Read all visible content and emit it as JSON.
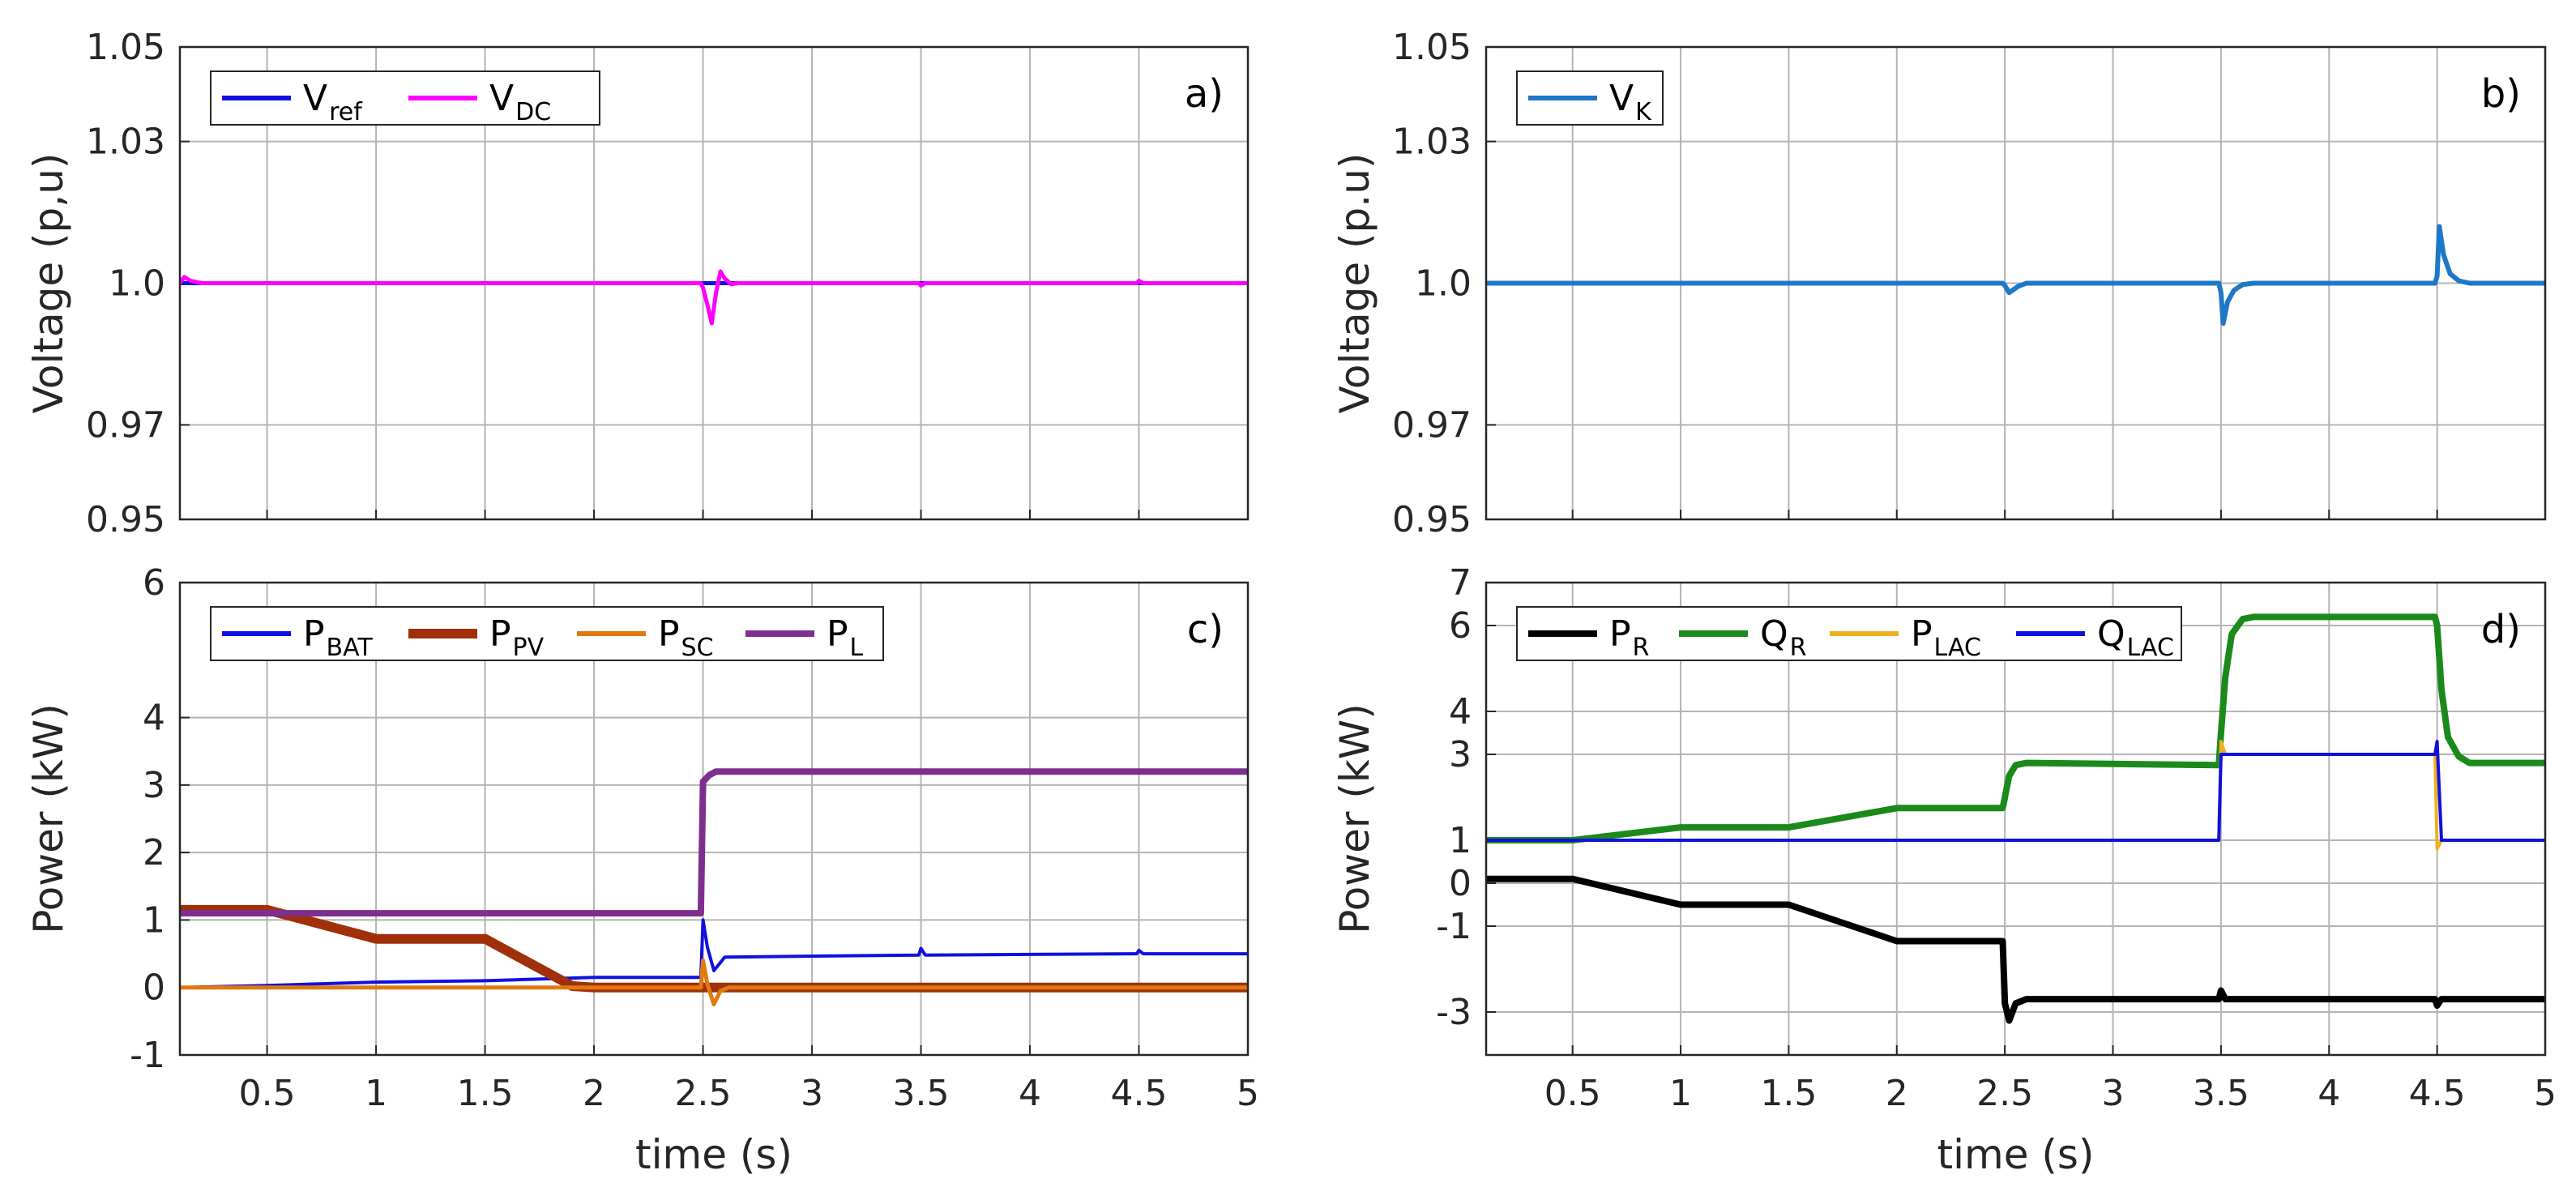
{
  "chart_data": [
    {
      "id": "a",
      "type": "line",
      "panel_label": "a)",
      "xlabel": "",
      "ylabel": "Voltage (p,u)",
      "xlim": [
        0.1,
        5
      ],
      "ylim": [
        0.95,
        1.05
      ],
      "xticks": [
        0.5,
        1,
        1.5,
        2,
        2.5,
        3,
        3.5,
        4,
        4.5,
        5
      ],
      "xtick_labels": [],
      "yticks": [
        0.95,
        0.97,
        1.0,
        1.03,
        1.05
      ],
      "ytick_labels": [
        "0.95",
        "0.97",
        "1.0",
        "1.03",
        "1.05"
      ],
      "grid": true,
      "legend": {
        "position": "top-left",
        "orientation": "horizontal"
      },
      "series": [
        {
          "name": "V",
          "sub": "ref",
          "color": "#1010e0",
          "width": 5,
          "x": [
            0.1,
            5
          ],
          "y": [
            1.0,
            1.0
          ]
        },
        {
          "name": "V",
          "sub": "DC",
          "color": "#ff00ff",
          "width": 5,
          "x": [
            0.1,
            0.12,
            0.15,
            0.2,
            2.49,
            2.5,
            2.52,
            2.54,
            2.56,
            2.58,
            2.6,
            2.63,
            2.66,
            3.49,
            3.5,
            3.52,
            4.49,
            4.5,
            4.52,
            5
          ],
          "y": [
            1.0,
            1.0013,
            1.0005,
            1.0,
            1.0,
            0.999,
            0.9955,
            0.9915,
            0.998,
            1.0025,
            1.001,
            0.9998,
            1.0,
            1.0,
            0.9995,
            1.0,
            1.0,
            1.0005,
            1.0,
            1.0
          ]
        }
      ]
    },
    {
      "id": "b",
      "type": "line",
      "panel_label": "b)",
      "xlabel": "",
      "ylabel": "Voltage (p.u)",
      "xlim": [
        0.1,
        5
      ],
      "ylim": [
        0.95,
        1.05
      ],
      "xticks": [
        0.5,
        1,
        1.5,
        2,
        2.5,
        3,
        3.5,
        4,
        4.5,
        5
      ],
      "xtick_labels": [],
      "yticks": [
        0.95,
        0.97,
        1.0,
        1.03,
        1.05
      ],
      "ytick_labels": [
        "0.95",
        "0.97",
        "1.0",
        "1.03",
        "1.05"
      ],
      "grid": true,
      "legend": {
        "position": "top-left",
        "orientation": "horizontal"
      },
      "series": [
        {
          "name": "V",
          "sub": "K",
          "color": "#1e78c8",
          "width": 6,
          "x": [
            0.1,
            2.49,
            2.5,
            2.52,
            2.56,
            2.6,
            3.49,
            3.5,
            3.51,
            3.53,
            3.56,
            3.6,
            3.65,
            4.49,
            4.5,
            4.51,
            4.53,
            4.56,
            4.6,
            4.65,
            5
          ],
          "y": [
            1.0,
            1.0,
            0.9995,
            0.998,
            0.9993,
            1.0,
            1.0,
            0.998,
            0.9915,
            0.996,
            0.9985,
            0.9997,
            1.0,
            1.0,
            1.0015,
            1.012,
            1.006,
            1.002,
            1.0005,
            1.0,
            1.0
          ]
        }
      ]
    },
    {
      "id": "c",
      "type": "line",
      "panel_label": "c)",
      "xlabel": "time (s)",
      "ylabel": "Power (kW)",
      "xlim": [
        0.1,
        5
      ],
      "ylim": [
        -1,
        6
      ],
      "xticks": [
        0.5,
        1,
        1.5,
        2,
        2.5,
        3,
        3.5,
        4,
        4.5,
        5
      ],
      "xtick_labels": [
        "0.5",
        "1",
        "1.5",
        "2",
        "2.5",
        "3",
        "3.5",
        "4",
        "4.5",
        "5"
      ],
      "yticks": [
        -1,
        0,
        1,
        2,
        3,
        4,
        6
      ],
      "ytick_labels": [
        "-1",
        "0",
        "1",
        "2",
        "3",
        "4",
        "6"
      ],
      "grid": true,
      "legend": {
        "position": "top-left",
        "orientation": "horizontal"
      },
      "series": [
        {
          "name": "P",
          "sub": "BAT",
          "color": "#1010e0",
          "width": 4,
          "x": [
            0.1,
            0.5,
            1.0,
            1.5,
            2.0,
            2.49,
            2.5,
            2.52,
            2.55,
            2.6,
            3.49,
            3.5,
            3.52,
            4.49,
            4.5,
            4.52,
            5
          ],
          "y": [
            0.0,
            0.03,
            0.08,
            0.1,
            0.15,
            0.15,
            1.0,
            0.6,
            0.25,
            0.45,
            0.48,
            0.58,
            0.48,
            0.5,
            0.55,
            0.5,
            0.5
          ]
        },
        {
          "name": "P",
          "sub": "PV",
          "color": "#a0300a",
          "width": 12,
          "x": [
            0.1,
            0.5,
            1.0,
            1.5,
            1.9,
            2.0,
            5
          ],
          "y": [
            1.15,
            1.15,
            0.72,
            0.72,
            0.02,
            0.0,
            0.0
          ]
        },
        {
          "name": "P",
          "sub": "SC",
          "color": "#e07a10",
          "width": 5,
          "x": [
            0.1,
            2.49,
            2.5,
            2.52,
            2.55,
            2.58,
            2.62,
            5
          ],
          "y": [
            0.0,
            0.0,
            0.4,
            0.05,
            -0.25,
            -0.05,
            0.0,
            0.0
          ]
        },
        {
          "name": "P",
          "sub": "L",
          "color": "#7e2f8e",
          "width": 8,
          "x": [
            0.1,
            2.49,
            2.5,
            2.53,
            2.56,
            5
          ],
          "y": [
            1.1,
            1.1,
            3.05,
            3.15,
            3.2,
            3.2
          ]
        }
      ]
    },
    {
      "id": "d",
      "type": "line",
      "panel_label": "d)",
      "xlabel": "time (s)",
      "ylabel": "Power (kW)",
      "xlim": [
        0.1,
        5
      ],
      "ylim": [
        -4,
        7
      ],
      "xticks": [
        0.5,
        1,
        1.5,
        2,
        2.5,
        3,
        3.5,
        4,
        4.5,
        5
      ],
      "xtick_labels": [
        "0.5",
        "1",
        "1.5",
        "2",
        "2.5",
        "3",
        "3.5",
        "4",
        "4.5",
        "5"
      ],
      "yticks": [
        -3,
        -1,
        0,
        1,
        3,
        4,
        6,
        7
      ],
      "ytick_labels": [
        "-3",
        "-1",
        "0",
        "1",
        "3",
        "4",
        "6",
        "7"
      ],
      "grid": true,
      "legend": {
        "position": "top-left",
        "orientation": "horizontal"
      },
      "series": [
        {
          "name": "P",
          "sub": "R",
          "color": "#000000",
          "width": 8,
          "x": [
            0.1,
            0.5,
            1.0,
            1.5,
            2.0,
            2.49,
            2.5,
            2.52,
            2.55,
            2.6,
            3.49,
            3.5,
            3.52,
            4.49,
            4.5,
            4.52,
            5
          ],
          "y": [
            0.1,
            0.1,
            -0.5,
            -0.5,
            -1.35,
            -1.35,
            -2.8,
            -3.2,
            -2.8,
            -2.7,
            -2.7,
            -2.5,
            -2.7,
            -2.7,
            -2.85,
            -2.7,
            -2.7
          ]
        },
        {
          "name": "Q",
          "sub": "R",
          "color": "#1a8a1a",
          "width": 8,
          "x": [
            0.1,
            0.5,
            1.0,
            1.5,
            2.0,
            2.49,
            2.5,
            2.52,
            2.55,
            2.6,
            3.49,
            3.5,
            3.52,
            3.55,
            3.6,
            3.65,
            4.49,
            4.5,
            4.52,
            4.55,
            4.6,
            4.65,
            5
          ],
          "y": [
            1.0,
            1.0,
            1.3,
            1.3,
            1.75,
            1.75,
            2.0,
            2.5,
            2.75,
            2.8,
            2.75,
            3.5,
            4.8,
            5.8,
            6.15,
            6.2,
            6.2,
            6.0,
            4.5,
            3.4,
            2.95,
            2.8,
            2.8
          ]
        },
        {
          "name": "P",
          "sub": "LAC",
          "color": "#edb120",
          "width": 4,
          "x": [
            0.1,
            3.49,
            3.5,
            3.52,
            4.49,
            4.5,
            4.52,
            5
          ],
          "y": [
            1.0,
            1.0,
            3.3,
            3.0,
            3.0,
            0.8,
            1.0,
            1.0
          ]
        },
        {
          "name": "Q",
          "sub": "LAC",
          "color": "#1010e0",
          "width": 4,
          "x": [
            0.1,
            3.49,
            3.5,
            3.52,
            4.49,
            4.5,
            4.52,
            5
          ],
          "y": [
            1.0,
            1.0,
            3.0,
            3.0,
            3.0,
            3.3,
            1.0,
            1.0
          ]
        }
      ]
    }
  ]
}
